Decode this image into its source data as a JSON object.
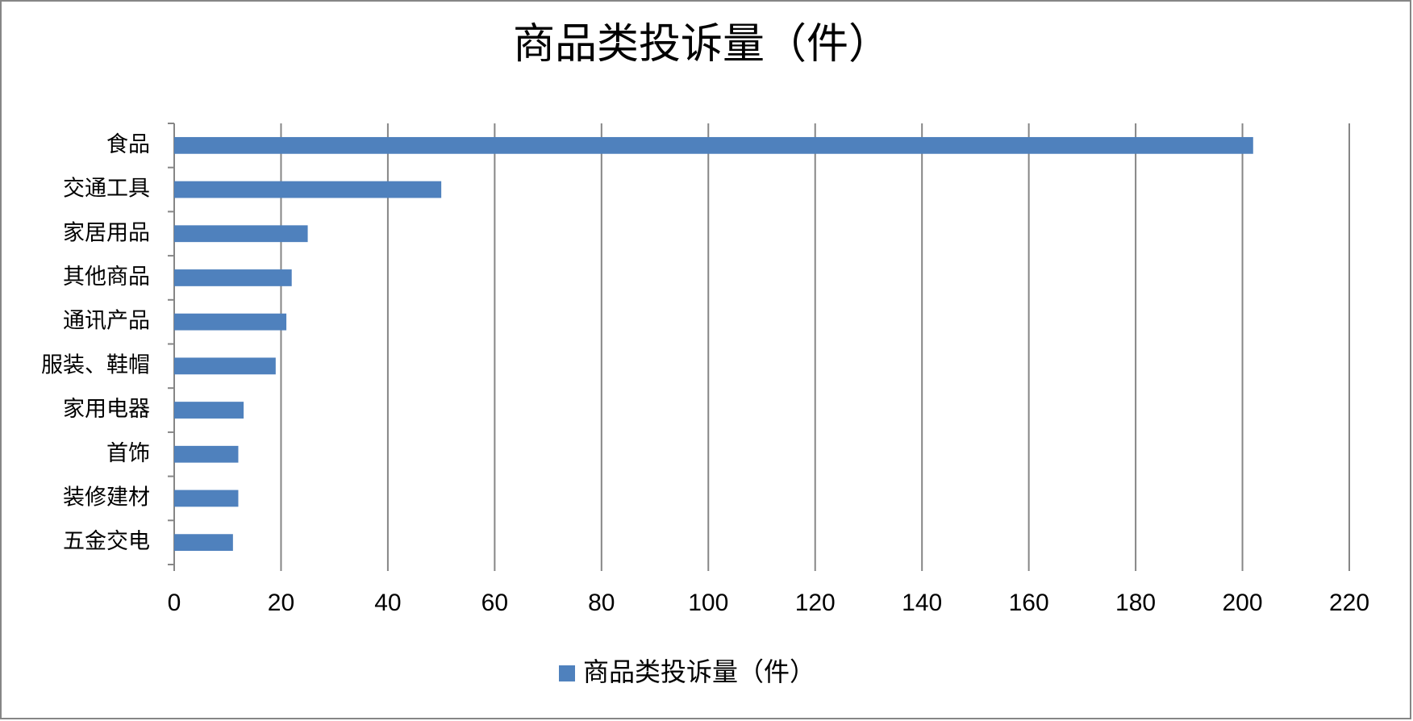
{
  "chart_data": {
    "type": "bar",
    "orientation": "horizontal",
    "title": "商品类投诉量（件）",
    "categories": [
      "食品",
      "交通工具",
      "家居用品",
      "其他商品",
      "通讯产品",
      "服装、鞋帽",
      "家用电器",
      "首饰",
      "装修建材",
      "五金交电"
    ],
    "series": [
      {
        "name": "商品类投诉量（件）",
        "color": "#4f81bd",
        "values": [
          202,
          50,
          25,
          22,
          21,
          19,
          13,
          12,
          12,
          11
        ]
      }
    ],
    "xlim": [
      0,
      220
    ],
    "xticks": [
      0,
      20,
      40,
      60,
      80,
      100,
      120,
      140,
      160,
      180,
      200,
      220
    ],
    "grid": true,
    "legend": "bottom"
  }
}
